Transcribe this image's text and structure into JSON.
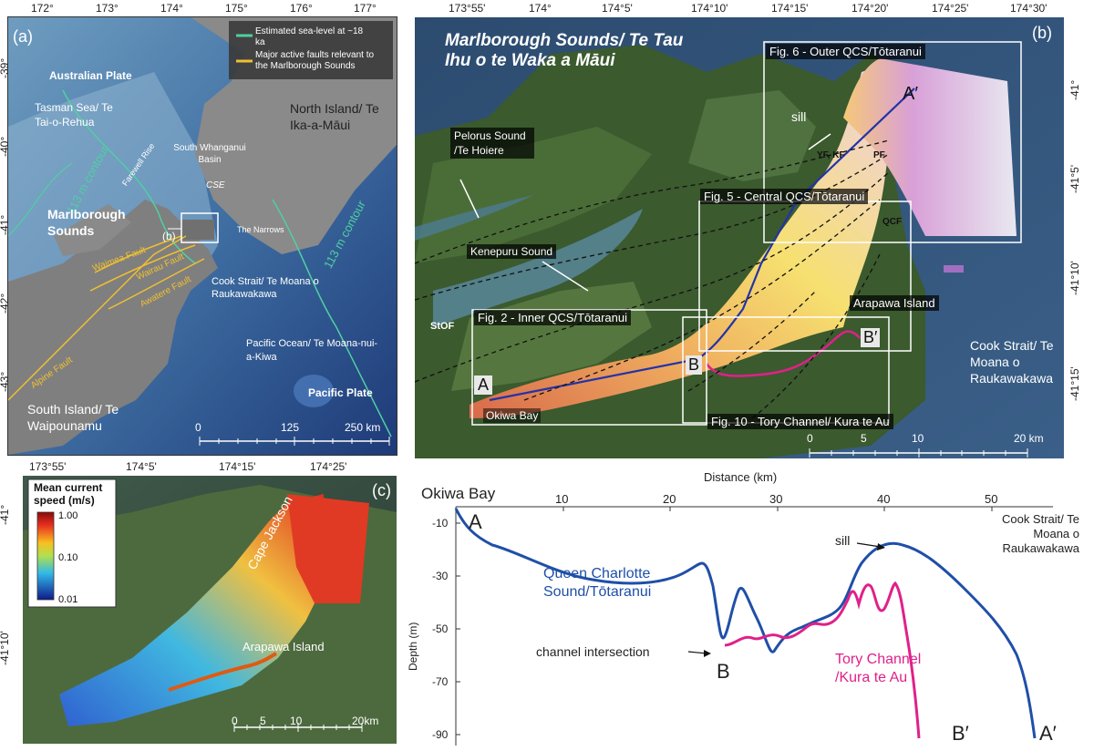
{
  "panel_a": {
    "label": "(a)",
    "lon_ticks": [
      "172°",
      "173°",
      "174°",
      "175°",
      "176°",
      "177°"
    ],
    "lat_ticks": [
      "-39°",
      "-40°",
      "-41°",
      "-42°",
      "-43°"
    ],
    "legend": {
      "sea_level": "Estimated sea-level at ~18 ka",
      "faults": "Major active faults relevant to the Marlborough Sounds",
      "sea_level_color": "#4fd0a0",
      "faults_color": "#f0c030"
    },
    "labels": {
      "australian_plate": "Australian Plate",
      "tasman": "Tasman Sea/ Te Tai-o-Rehua",
      "north_island": "North Island/ Te Ika-a-Māui",
      "contour_left": "113 m contour",
      "contour_right": "113 m contour",
      "farewell": "Farewell Rise",
      "whanganui": "South Whanganui Basin",
      "cse": "CSE",
      "marlborough": "Marlborough Sounds",
      "b_marker": "(b)",
      "narrows": "The Narrows",
      "waimea": "Waimea Fault",
      "wairau": "Wairau Fault",
      "awatere": "Awatere Fault",
      "alpine": "Alpine Fault",
      "cook_strait": "Cook Strait/ Te Moana o Raukawakawa",
      "pacific_ocean": "Pacific Ocean/ Te Moana-nui-a-Kiwa",
      "pacific_plate": "Pacific Plate",
      "south_island": "South Island/ Te Waipounamu"
    },
    "scale": [
      "0",
      "125",
      "250 km"
    ]
  },
  "panel_b": {
    "label": "(b)",
    "title": "Marlborough Sounds/ Te Tau Ihu o te Waka a Māui",
    "lon_ticks": [
      "173°55'",
      "174°",
      "174°5'",
      "174°10'",
      "174°15'",
      "174°20'",
      "174°25'",
      "174°30'"
    ],
    "lat_ticks": [
      "-41°",
      "-41°5'",
      "-41°10'",
      "-41°15'"
    ],
    "boxes": {
      "fig6": "Fig. 6 - Outer QCS/Tōtaranui",
      "fig5": "Fig. 5 - Central QCS/Tōtaranui",
      "fig2": "Fig. 2 - Inner QCS/Tōtaranui",
      "fig10": "Fig. 10 - Tory Channel/ Kura te Au"
    },
    "labels": {
      "pelorus": "Pelorus Sound /Te Hoiere",
      "kenepuru": "Kenepuru Sound",
      "stof": "StOF",
      "sill": "sill",
      "yf_kf": "YF, KF",
      "pf": "PF",
      "qcf": "QCF",
      "arapawa": "Arapawa Island",
      "cook_strait": "Cook Strait/ Te Moana o Raukawakawa",
      "okiwa": "Okiwa Bay",
      "point_a": "A",
      "point_a_prime": "A′",
      "point_b": "B",
      "point_b_prime": "B′"
    },
    "scale": [
      "0",
      "5",
      "10",
      "20 km"
    ]
  },
  "panel_c": {
    "label": "(c)",
    "lon_ticks": [
      "173°55'",
      "174°5'",
      "174°15'",
      "174°25'"
    ],
    "lat_ticks": [
      "-41°",
      "-41°10'"
    ],
    "colorbar": {
      "title": "Mean current speed (m/s)",
      "ticks": [
        "1.00",
        "0.10",
        "0.01"
      ]
    },
    "labels": {
      "cape_jackson": "Cape Jackson",
      "arapawa": "Arapawa Island"
    },
    "scale": [
      "0",
      "5",
      "10",
      "20km"
    ]
  },
  "profile": {
    "xlabel": "Distance (km)",
    "ylabel": "Depth (m)",
    "x_ticks": [
      "10",
      "20",
      "30",
      "40",
      "50"
    ],
    "y_ticks": [
      "-10",
      "-30",
      "-50",
      "-70",
      "-90"
    ],
    "labels": {
      "okiwa": "Okiwa Bay",
      "a": "A",
      "a_prime": "A′",
      "b": "B",
      "b_prime": "B′",
      "qcs": "Queen Charlotte Sound/Tōtaranui",
      "tory": "Tory Channel /Kura te Au",
      "sill": "sill",
      "intersection": "channel intersection",
      "cook_strait": "Cook Strait/ Te Moana o Raukawakawa"
    },
    "colors": {
      "qcs": "#1f4fa8",
      "tory": "#e0208a"
    }
  }
}
